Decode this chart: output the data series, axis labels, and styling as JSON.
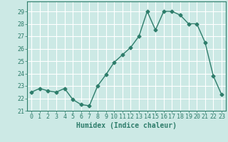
{
  "x": [
    0,
    1,
    2,
    3,
    4,
    5,
    6,
    7,
    8,
    9,
    10,
    11,
    12,
    13,
    14,
    15,
    16,
    17,
    18,
    19,
    20,
    21,
    22,
    23
  ],
  "y": [
    22.5,
    22.8,
    22.6,
    22.5,
    22.8,
    21.9,
    21.5,
    21.4,
    23.0,
    23.9,
    24.9,
    25.5,
    26.1,
    27.0,
    29.0,
    27.5,
    29.0,
    29.0,
    28.7,
    28.0,
    28.0,
    26.5,
    23.8,
    22.3
  ],
  "line_color": "#2e7d6b",
  "marker": "D",
  "marker_size": 2.5,
  "background_color": "#cce9e5",
  "grid_color": "#ffffff",
  "xlabel": "Humidex (Indice chaleur)",
  "xlim": [
    -0.5,
    23.5
  ],
  "ylim": [
    21,
    29.8
  ],
  "yticks": [
    21,
    22,
    23,
    24,
    25,
    26,
    27,
    28,
    29
  ],
  "xticks": [
    0,
    1,
    2,
    3,
    4,
    5,
    6,
    7,
    8,
    9,
    10,
    11,
    12,
    13,
    14,
    15,
    16,
    17,
    18,
    19,
    20,
    21,
    22,
    23
  ],
  "xlabel_fontsize": 7,
  "tick_fontsize": 6,
  "axes_color": "#2e7d6b",
  "line_width": 1.0
}
